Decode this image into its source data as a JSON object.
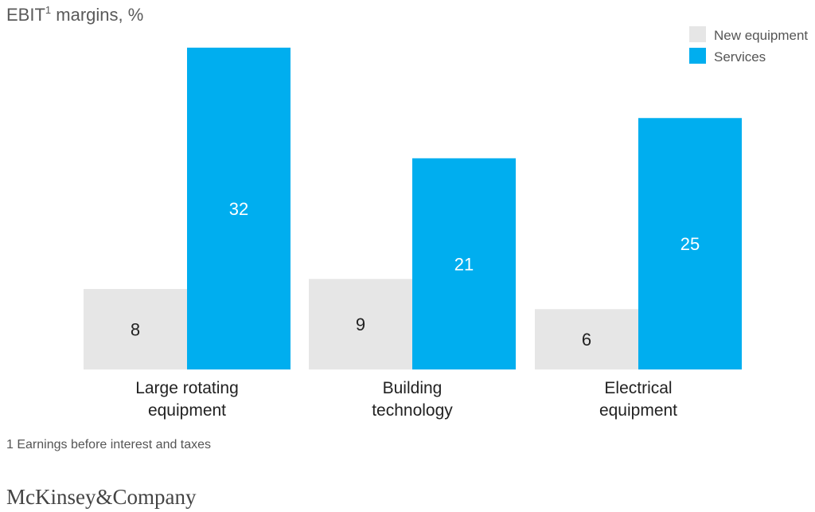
{
  "chart_data": {
    "type": "bar",
    "title": "EBIT",
    "title_superscript": "1",
    "title_suffix": " margins, %",
    "categories": [
      [
        "Large rotating",
        "equipment"
      ],
      [
        "Building",
        "technology"
      ],
      [
        "Electrical",
        "equipment"
      ]
    ],
    "series": [
      {
        "name": "New equipment",
        "values": [
          8,
          9,
          6
        ],
        "color": "#e6e6e6",
        "label_color": "#222222"
      },
      {
        "name": "Services",
        "values": [
          32,
          21,
          25
        ],
        "color": "#00aeef",
        "label_color": "#ffffff"
      }
    ],
    "ylim": [
      0,
      32
    ],
    "grid": false,
    "legend_position": "top-right",
    "footnote": "1 Earnings before interest and taxes"
  },
  "brand": {
    "logo_text": "McKinsey&Company"
  }
}
